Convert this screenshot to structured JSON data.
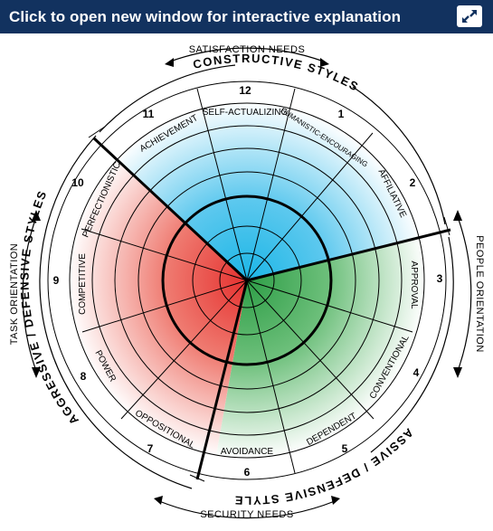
{
  "banner": {
    "title": "Click to open new window for interactive explanation"
  },
  "icons": {
    "expand": "expand-arrows-icon"
  },
  "outer_labels": {
    "satisfaction_needs": "SATISFACTION NEEDS",
    "security_needs": "SECURITY NEEDS",
    "task_orientation": "TASK ORIENTATION",
    "people_orientation": "PEOPLE ORIENTATION",
    "constructive_styles": "CONSTRUCTIVE STYLES",
    "aggressive_defensive_styles": "AGGRESSIVE / DEFENSIVE STYLES",
    "passive_defensive_styles": "PASSIVE / DEFENSIVE STYLES"
  },
  "styles": [
    {
      "number": "1",
      "label": "HUMANISTIC-ENCOURAGING"
    },
    {
      "number": "2",
      "label": "AFFILIATIVE"
    },
    {
      "number": "3",
      "label": "APPROVAL"
    },
    {
      "number": "4",
      "label": "CONVENTIONAL"
    },
    {
      "number": "5",
      "label": "DEPENDENT"
    },
    {
      "number": "6",
      "label": "AVOIDANCE"
    },
    {
      "number": "7",
      "label": "OPPOSITIONAL"
    },
    {
      "number": "8",
      "label": "POWER"
    },
    {
      "number": "9",
      "label": "COMPETITIVE"
    },
    {
      "number": "10",
      "label": "PERFECTIONISTIC"
    },
    {
      "number": "11",
      "label": "ACHIEVEMENT"
    },
    {
      "number": "12",
      "label": "SELF-ACTUALIZING"
    }
  ],
  "colors": {
    "banner": "#12325f",
    "constructive": "#1bb6e6",
    "passive_defensive": "#2e9e47",
    "aggressive_defensive": "#e5312f",
    "lines": "#000000"
  }
}
